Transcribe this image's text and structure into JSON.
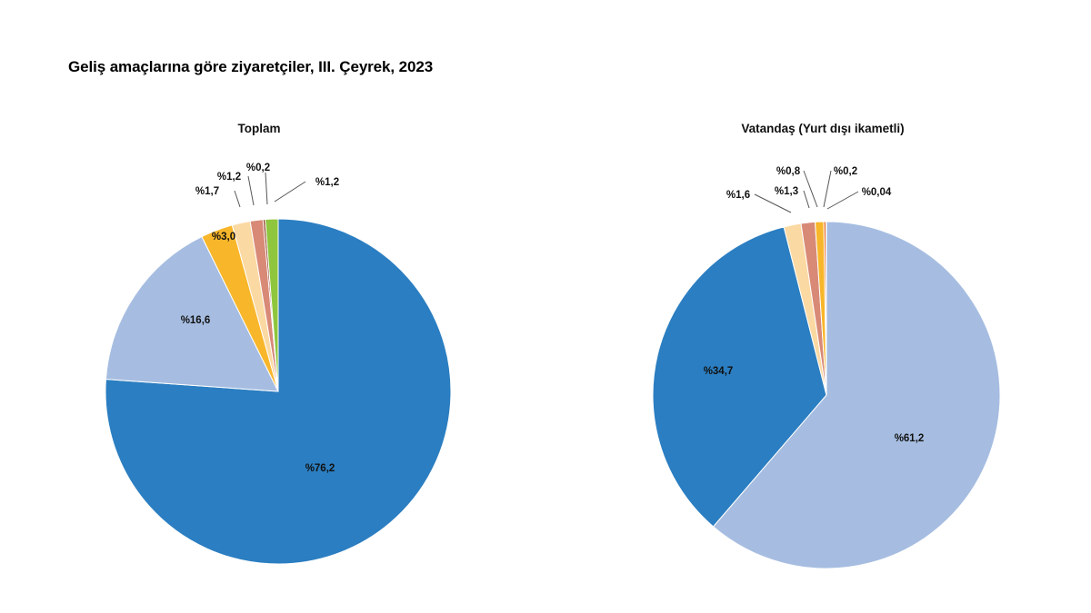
{
  "title": "Geliş amaçlarına göre ziyaretçiler, III. Çeyrek, 2023",
  "chart_data": [
    {
      "type": "pie",
      "title": "Toplam",
      "slices": [
        {
          "value": 76.2,
          "label": "%76,2",
          "color": "#2b7ec1"
        },
        {
          "value": 16.6,
          "label": "%16,6",
          "color": "#a6bde1"
        },
        {
          "value": 3.0,
          "label": "%3,0",
          "color": "#f8b62a"
        },
        {
          "value": 1.7,
          "label": "%1,7",
          "color": "#fbd9a3"
        },
        {
          "value": 1.2,
          "label": "%1,2",
          "color": "#d88a77"
        },
        {
          "value": 0.2,
          "label": "%0,2",
          "color": "#8b3a1e"
        },
        {
          "value": 1.2,
          "label": "%1,2",
          "color": "#8fc63e"
        }
      ]
    },
    {
      "type": "pie",
      "title": "Vatandaş (Yurt dışı ikametli)",
      "slices": [
        {
          "value": 61.2,
          "label": "%61,2",
          "color": "#a6bde1"
        },
        {
          "value": 34.7,
          "label": "%34,7",
          "color": "#2b7ec1"
        },
        {
          "value": 1.6,
          "label": "%1,6",
          "color": "#fbd9a3"
        },
        {
          "value": 1.3,
          "label": "%1,3",
          "color": "#d88a77"
        },
        {
          "value": 0.8,
          "label": "%0,8",
          "color": "#f8b62a"
        },
        {
          "value": 0.2,
          "label": "%0,2",
          "color": "#e66a1e"
        },
        {
          "value": 0.04,
          "label": "%0,04",
          "color": "#8b3a1e"
        }
      ]
    }
  ]
}
